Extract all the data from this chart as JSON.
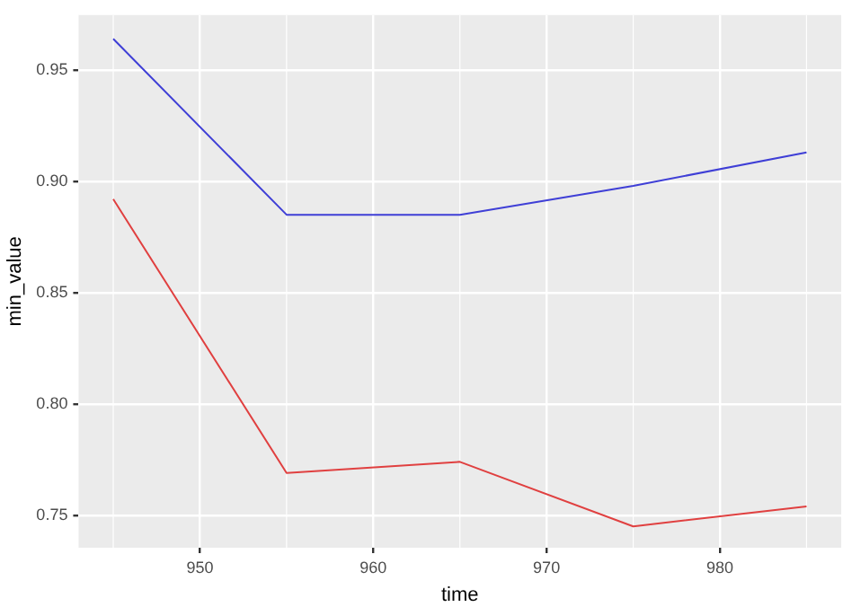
{
  "chart_data": {
    "type": "line",
    "xlabel": "time",
    "ylabel": "min_value",
    "x": [
      945,
      955,
      965,
      975,
      985
    ],
    "series": [
      {
        "color": "#3f3fd6",
        "values": [
          0.964,
          0.885,
          0.885,
          0.898,
          0.913
        ]
      },
      {
        "color": "#e04040",
        "values": [
          0.892,
          0.769,
          0.774,
          0.745,
          0.754
        ]
      }
    ],
    "xlim": [
      943,
      987
    ],
    "xticks": [
      950,
      960,
      970,
      980
    ],
    "ylim": [
      0.7354,
      0.9747
    ],
    "yticks": [
      {
        "value": 0.75,
        "label": "0.75"
      },
      {
        "value": 0.8,
        "label": "0.80"
      },
      {
        "value": 0.85,
        "label": "0.85"
      },
      {
        "value": 0.9,
        "label": "0.90"
      },
      {
        "value": 0.95,
        "label": "0.95"
      }
    ],
    "grid": true,
    "legend": false,
    "marker": "none",
    "line_style": "solid"
  }
}
